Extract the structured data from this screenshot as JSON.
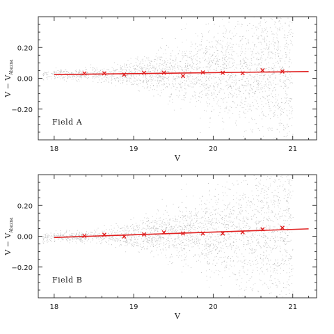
{
  "chart_data": [
    {
      "type": "scatter",
      "panel_label": "Field A",
      "xlabel": "V",
      "ylabel": {
        "main": "V  −  V",
        "subscript": "Abazna"
      },
      "xlim": [
        17.8,
        21.3
      ],
      "ylim": [
        -0.4,
        0.4
      ],
      "xticks": [
        "18",
        "19",
        "20",
        "21"
      ],
      "xtick_values": [
        18,
        19,
        20,
        21
      ],
      "yticks": [
        "0.20",
        "0.00",
        "−0.20"
      ],
      "ytick_values": [
        0.2,
        0.0,
        -0.2
      ],
      "background_points": "dense scatter of individual star differences",
      "binned_means": {
        "x": [
          18.38,
          18.63,
          18.88,
          19.13,
          19.38,
          19.62,
          19.87,
          20.12,
          20.37,
          20.62,
          20.87
        ],
        "y": [
          0.032,
          0.032,
          0.024,
          0.036,
          0.036,
          0.015,
          0.038,
          0.036,
          0.033,
          0.052,
          0.044
        ]
      },
      "fit_line": {
        "x": [
          18.0,
          21.2
        ],
        "y": [
          0.024,
          0.044
        ]
      },
      "marker_color": "#e02020",
      "line_color": "#e02020",
      "point_color": "#888888"
    },
    {
      "type": "scatter",
      "panel_label": "Field B",
      "xlabel": "V",
      "ylabel": {
        "main": "V  −  V",
        "subscript": "Abazna"
      },
      "xlim": [
        17.8,
        21.3
      ],
      "ylim": [
        -0.4,
        0.4
      ],
      "xticks": [
        "18",
        "19",
        "20",
        "21"
      ],
      "xtick_values": [
        18,
        19,
        20,
        21
      ],
      "yticks": [
        "0.20",
        "0.00",
        "−0.20"
      ],
      "ytick_values": [
        0.2,
        0.0,
        -0.2
      ],
      "background_points": "dense scatter of individual star differences",
      "binned_means": {
        "x": [
          18.38,
          18.63,
          18.88,
          19.13,
          19.38,
          19.62,
          19.87,
          20.12,
          20.37,
          20.62,
          20.87
        ],
        "y": [
          0.002,
          0.01,
          -0.002,
          0.012,
          0.025,
          0.018,
          0.018,
          0.018,
          0.026,
          0.045,
          0.055
        ]
      },
      "fit_line": {
        "x": [
          18.0,
          21.2
        ],
        "y": [
          -0.008,
          0.048
        ]
      },
      "marker_color": "#e02020",
      "line_color": "#e02020",
      "point_color": "#888888"
    }
  ]
}
